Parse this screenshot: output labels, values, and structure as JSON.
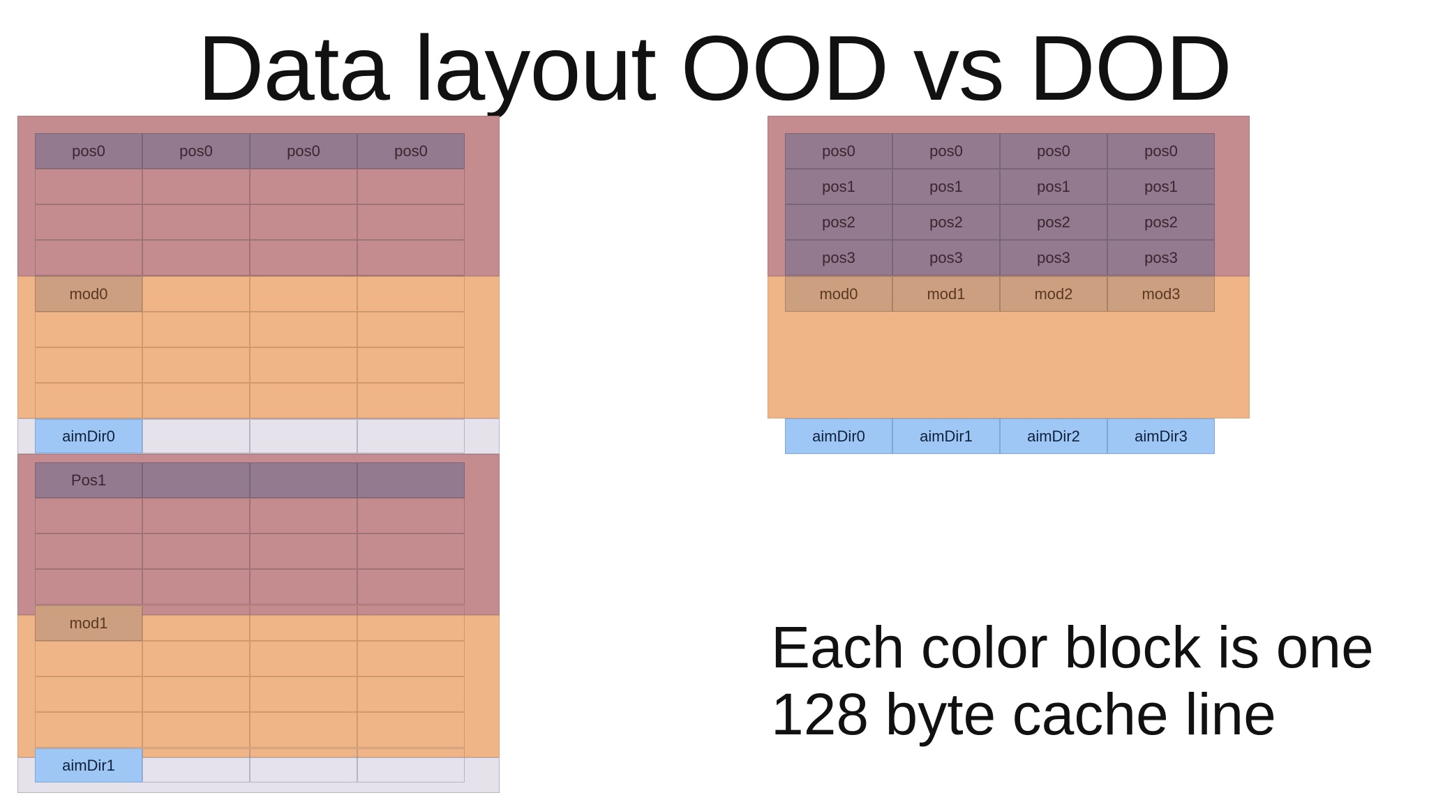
{
  "title": "Data layout OOD vs DOD",
  "caption": {
    "line1": "Each color block is one",
    "line2": "128 byte cache line"
  },
  "ood": {
    "block1": {
      "pos": [
        "pos0",
        "pos0",
        "pos0",
        "pos0"
      ],
      "mod": "mod0",
      "aim": "aimDir0"
    },
    "block2": {
      "pos": [
        "Pos1",
        "",
        "",
        ""
      ],
      "mod": "mod1",
      "aim": "aimDir1"
    }
  },
  "dod": {
    "pos_rows": [
      [
        "pos0",
        "pos0",
        "pos0",
        "pos0"
      ],
      [
        "pos1",
        "pos1",
        "pos1",
        "pos1"
      ],
      [
        "pos2",
        "pos2",
        "pos2",
        "pos2"
      ],
      [
        "pos3",
        "pos3",
        "pos3",
        "pos3"
      ]
    ],
    "mods": [
      "mod0",
      "mod1",
      "mod2",
      "mod3"
    ],
    "aims": [
      "aimDir0",
      "aimDir1",
      "aimDir2",
      "aimDir3"
    ]
  },
  "colors": {
    "pos_cacheline": "#c48c8e",
    "mod_cacheline": "#efb587",
    "aim_cacheline": "#e6e2ec",
    "pos_cell": "#947a8e",
    "mod_cell": "#cb9f7f",
    "aim_cell": "#9ec7f5"
  }
}
